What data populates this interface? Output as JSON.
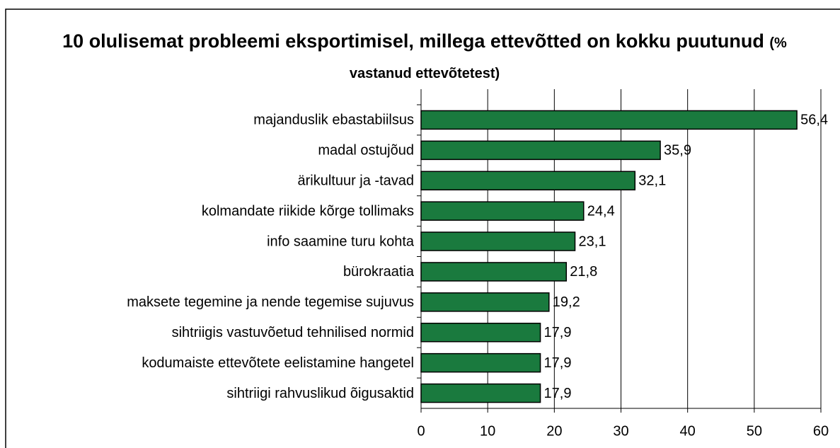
{
  "chart_data": {
    "type": "bar",
    "orientation": "horizontal",
    "title": "10 olulisemat probleemi eksportimisel, millega ettevõtted on kokku puutunud",
    "subtitle": "(% vastanud ettevõtetest)",
    "categories": [
      "majanduslik ebastabiilsus",
      "madal ostujõud",
      "ärikultuur ja -tavad",
      "kolmandate riikide kõrge tollimaks",
      "info saamine turu kohta",
      "bürokraatia",
      "maksete tegemine ja nende tegemise sujuvus",
      "sihtriigis vastuvõetud tehnilised normid",
      "kodumaiste ettevõtete eelistamine hangetel",
      "sihtriigi rahvuslikud õigusaktid"
    ],
    "values": [
      56.4,
      35.9,
      32.1,
      24.4,
      23.1,
      21.8,
      19.2,
      17.9,
      17.9,
      17.9
    ],
    "value_labels": [
      "56,4",
      "35,9",
      "32,1",
      "24,4",
      "23,1",
      "21,8",
      "19,2",
      "17,9",
      "17,9",
      "17,9"
    ],
    "color": "#1a7a3e",
    "xlim": [
      0,
      60
    ],
    "xticks": [
      0,
      10,
      20,
      30,
      40,
      50,
      60
    ],
    "grid": true
  }
}
